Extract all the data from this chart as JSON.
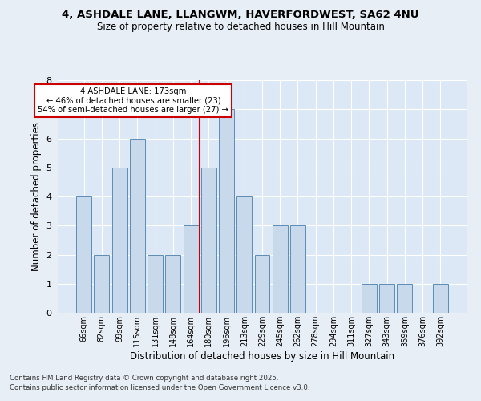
{
  "title1": "4, ASHDALE LANE, LLANGWM, HAVERFORDWEST, SA62 4NU",
  "title2": "Size of property relative to detached houses in Hill Mountain",
  "xlabel": "Distribution of detached houses by size in Hill Mountain",
  "ylabel": "Number of detached properties",
  "categories": [
    "66sqm",
    "82sqm",
    "99sqm",
    "115sqm",
    "131sqm",
    "148sqm",
    "164sqm",
    "180sqm",
    "196sqm",
    "213sqm",
    "229sqm",
    "245sqm",
    "262sqm",
    "278sqm",
    "294sqm",
    "311sqm",
    "327sqm",
    "343sqm",
    "359sqm",
    "376sqm",
    "392sqm"
  ],
  "values": [
    4,
    2,
    5,
    6,
    2,
    2,
    3,
    5,
    7,
    4,
    2,
    3,
    3,
    0,
    0,
    0,
    1,
    1,
    1,
    0,
    1
  ],
  "bar_color": "#c9d9ec",
  "bar_edge_color": "#5b8db8",
  "highlight_index": 7,
  "highlight_line_color": "#cc0000",
  "ylim": [
    0,
    8
  ],
  "yticks": [
    0,
    1,
    2,
    3,
    4,
    5,
    6,
    7,
    8
  ],
  "annotation_title": "4 ASHDALE LANE: 173sqm",
  "annotation_line1": "← 46% of detached houses are smaller (23)",
  "annotation_line2": "54% of semi-detached houses are larger (27) →",
  "annotation_box_color": "#ffffff",
  "annotation_box_edge": "#cc0000",
  "footer1": "Contains HM Land Registry data © Crown copyright and database right 2025.",
  "footer2": "Contains public sector information licensed under the Open Government Licence v3.0.",
  "bg_color": "#e8eef5",
  "plot_bg_color": "#dce8f5",
  "grid_color": "#ffffff"
}
